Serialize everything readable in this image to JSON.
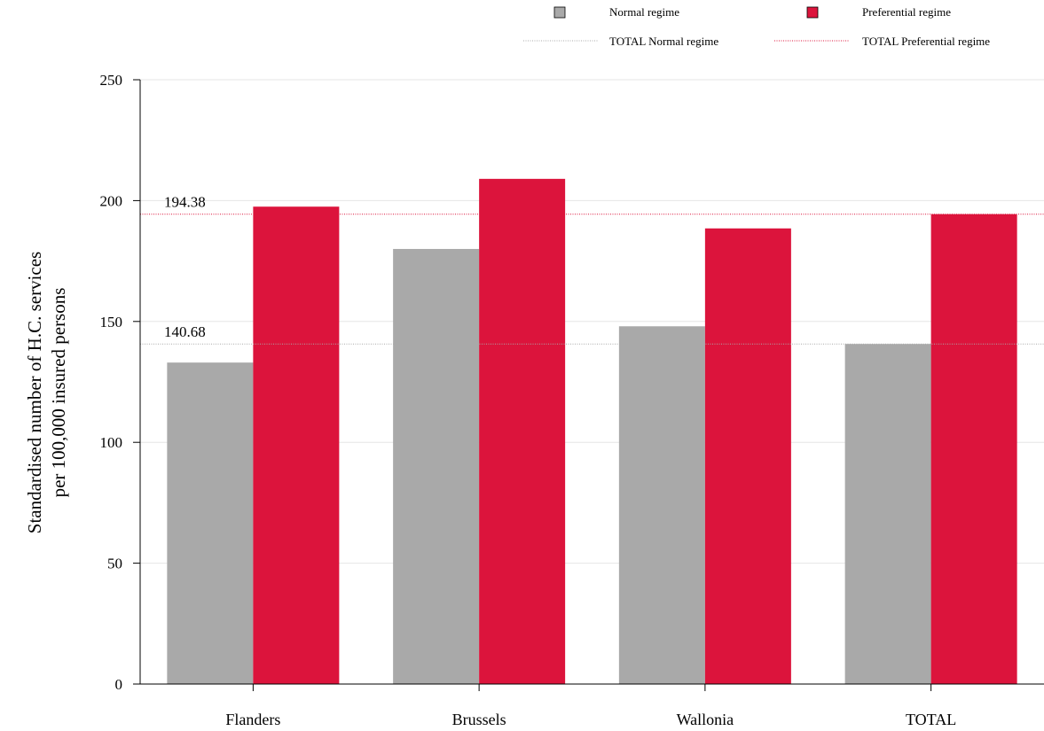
{
  "chart_data": {
    "type": "bar",
    "title": "",
    "xlabel": "",
    "ylabel": [
      "Standardised number of H.C. services",
      "per 100,000 insured persons"
    ],
    "categories": [
      "Flanders",
      "Brussels",
      "Wallonia",
      "TOTAL"
    ],
    "series": [
      {
        "name": "Normal regime",
        "color": "#a9a9a9",
        "values": [
          133,
          180,
          148,
          140.68
        ]
      },
      {
        "name": "Preferential regime",
        "color": "#dc143c",
        "values": [
          197.5,
          209,
          188.5,
          194.38
        ]
      }
    ],
    "reference_lines": [
      {
        "name": "TOTAL Normal regime",
        "value": 140.68,
        "label": "140.68",
        "color": "#a9a9a9",
        "style": "dotted"
      },
      {
        "name": "TOTAL Preferential regime",
        "value": 194.38,
        "label": "194.38",
        "color": "#dc143c",
        "style": "dotted"
      }
    ],
    "ylim": [
      0,
      250
    ],
    "yticks": [
      0,
      50,
      100,
      150,
      200,
      250
    ],
    "grid": true,
    "legend_position": "top-right"
  }
}
